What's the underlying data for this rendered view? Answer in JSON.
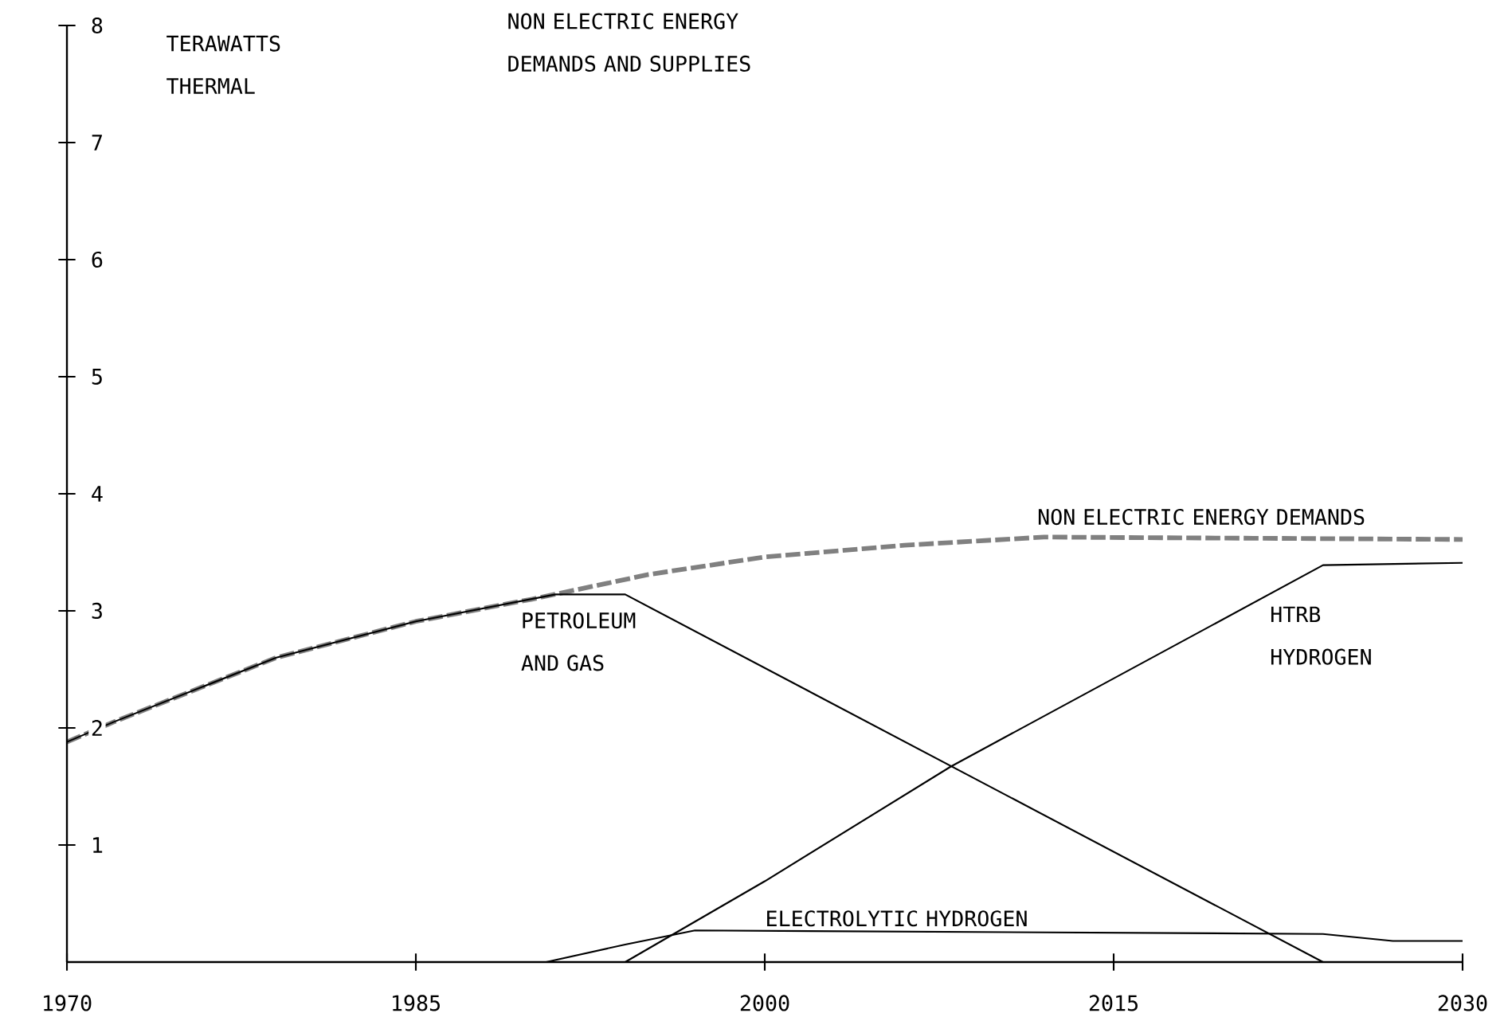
{
  "chart_data": {
    "type": "line",
    "title": "NON ELECTRIC ENERGY DEMANDS AND SUPPLIES",
    "ylabel": "TERAWATTS THERMAL",
    "xlim": [
      1970,
      2030
    ],
    "xticks": [
      1970,
      1985,
      2000,
      2015,
      2030
    ],
    "ylim": [
      0,
      8
    ],
    "yticks": [
      1,
      2,
      3,
      4,
      5,
      6,
      7,
      8
    ],
    "series": [
      {
        "name": "NON ELECTRIC ENERGY DEMANDS",
        "color": "#808080",
        "line_style": "dashed",
        "x": [
          1970,
          1972,
          1979,
          1985,
          1990,
          1995,
          2000,
          2006,
          2012,
          2021,
          2030
        ],
        "values": [
          1.88,
          2.05,
          2.6,
          2.91,
          3.1,
          3.31,
          3.46,
          3.56,
          3.63,
          3.62,
          3.61
        ]
      },
      {
        "name": "PETROLEUM AND GAS",
        "color": "#000000",
        "x": [
          1970,
          1972,
          1979,
          1985,
          1991,
          1994,
          2024,
          2030
        ],
        "values": [
          1.88,
          2.05,
          2.6,
          2.91,
          3.14,
          3.14,
          0,
          0
        ]
      },
      {
        "name": "HTRB HYDROGEN",
        "color": "#000000",
        "x": [
          1970,
          1994,
          2000,
          2008,
          2024,
          2030
        ],
        "values": [
          0,
          0,
          0.69,
          1.67,
          3.39,
          3.41
        ]
      },
      {
        "name": "ELECTROLYTIC HYDROGEN",
        "color": "#000000",
        "x": [
          1970,
          1990.6,
          1994,
          1997,
          2024,
          2027,
          2030
        ],
        "values": [
          0,
          0,
          0.15,
          0.27,
          0.24,
          0.18,
          0.18
        ]
      }
    ],
    "grid": false,
    "legend": false,
    "marker": "none"
  }
}
